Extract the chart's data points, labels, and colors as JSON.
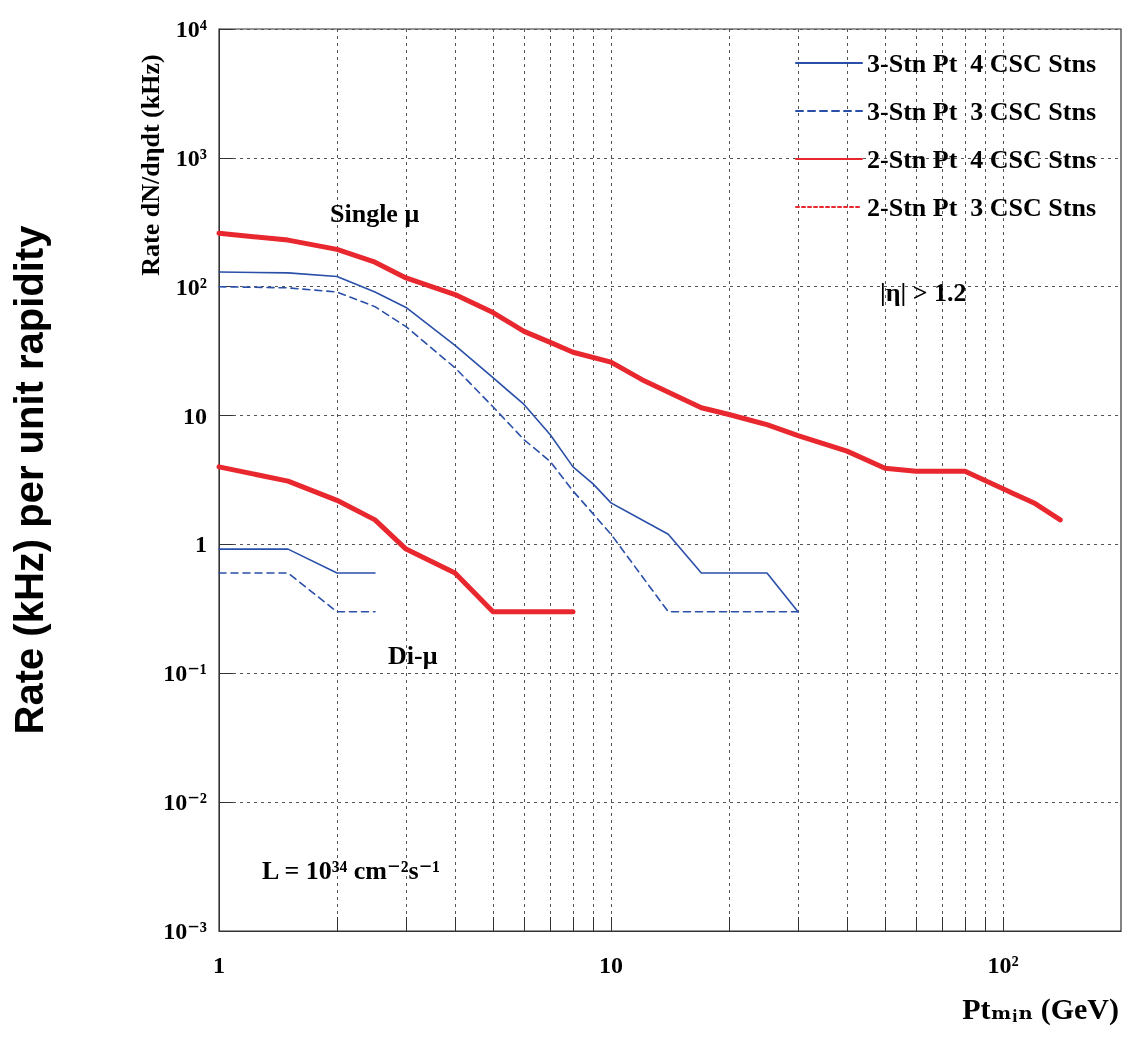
{
  "chart_data": {
    "type": "line",
    "xlabel": "Ptₘᵢₙ (GeV)",
    "ylabel": "Rate (kHz) per unit rapidity",
    "annotations": [
      "Rate dN/dηdt (kHz)",
      "Single μ",
      "Di-μ",
      "|η| > 1.2",
      "L = 10³⁴ cm⁻²s⁻¹"
    ],
    "log": "xy",
    "grid": true,
    "legend": "top right",
    "marker": "none",
    "xlim": [
      1,
      200
    ],
    "xticks": [
      {
        "value": 1,
        "label": "1"
      },
      {
        "value": 2,
        "label": null
      },
      {
        "value": 3,
        "label": null
      },
      {
        "value": 4,
        "label": null
      },
      {
        "value": 5,
        "label": null
      },
      {
        "value": 6,
        "label": null
      },
      {
        "value": 7,
        "label": null
      },
      {
        "value": 8,
        "label": null
      },
      {
        "value": 9,
        "label": null
      },
      {
        "value": 10,
        "label": "10"
      },
      {
        "value": 20,
        "label": null
      },
      {
        "value": 30,
        "label": null
      },
      {
        "value": 40,
        "label": null
      },
      {
        "value": 50,
        "label": null
      },
      {
        "value": 60,
        "label": null
      },
      {
        "value": 70,
        "label": null
      },
      {
        "value": 80,
        "label": null
      },
      {
        "value": 90,
        "label": null
      },
      {
        "value": 100,
        "label": "10²"
      }
    ],
    "ylim": [
      0.001,
      10000
    ],
    "yticks": [
      {
        "value": 0.001,
        "label": "10⁻³"
      },
      {
        "value": 0.01,
        "label": "10⁻²"
      },
      {
        "value": 0.1,
        "label": "10⁻¹"
      },
      {
        "value": 1,
        "label": "1"
      },
      {
        "value": 10,
        "label": "10"
      },
      {
        "value": 100,
        "label": "10²"
      },
      {
        "value": 1000,
        "label": "10³"
      },
      {
        "value": 10000,
        "label": "10⁴"
      }
    ],
    "series": [
      {
        "name": "3-Stn Pt  4 CSC Stns",
        "color": "#2a4fa8",
        "line_style": "solid",
        "x": [
          1,
          1.5,
          2,
          2.5,
          3,
          4,
          5,
          6,
          7,
          8,
          9,
          10,
          14,
          17,
          25,
          30
        ],
        "values": [
          130,
          128,
          120,
          91,
          69,
          35,
          19.7,
          12.2,
          7.1,
          4,
          2.95,
          2.1,
          1.2,
          0.6,
          0.6,
          0.3
        ]
      },
      {
        "name": "3-Stn Pt  3 CSC Stns",
        "color": "#2a4fa8",
        "line_style": "dashed",
        "x": [
          1,
          1.5,
          2,
          2.5,
          3,
          4,
          5,
          6,
          7,
          8,
          10,
          14,
          30
        ],
        "values": [
          100,
          98,
          91,
          70,
          49,
          23.5,
          11.7,
          6.5,
          4.4,
          2.6,
          1.2,
          0.3,
          0.3
        ]
      },
      {
        "name": "2-Stn Pt  4 CSC Stns",
        "color": "#e8282e",
        "line_style": "solid",
        "x": [
          1,
          1.5,
          2,
          2.5,
          3,
          4,
          5,
          6,
          7,
          8,
          10,
          12,
          17,
          20,
          25,
          30,
          40,
          50,
          60,
          80,
          100,
          120,
          140
        ],
        "values": [
          260,
          230,
          195,
          155,
          117,
          87,
          63,
          45,
          37,
          31,
          26,
          19,
          11.5,
          10.2,
          8.5,
          7,
          5.3,
          3.9,
          3.7,
          3.7,
          2.7,
          2.1,
          1.55
        ]
      },
      {
        "name": "2-Stn Pt  3 CSC Stns",
        "color": "#e8282e",
        "line_style": "dotted"
      },
      {
        "color": "#2a4fa8",
        "line_style": "solid",
        "x": [
          1,
          1.5,
          2,
          2.5
        ],
        "values": [
          0.92,
          0.92,
          0.6,
          0.6
        ]
      },
      {
        "color": "#2a4fa8",
        "line_style": "dashed",
        "x": [
          1,
          1.5,
          2,
          2.5
        ],
        "values": [
          0.6,
          0.6,
          0.3,
          0.3
        ]
      },
      {
        "color": "#e8282e",
        "line_style": "solid",
        "x": [
          1,
          1.5,
          2,
          2.5,
          3,
          4,
          5,
          8
        ],
        "values": [
          4,
          3.1,
          2.2,
          1.55,
          0.92,
          0.6,
          0.3,
          0.3
        ]
      }
    ]
  }
}
